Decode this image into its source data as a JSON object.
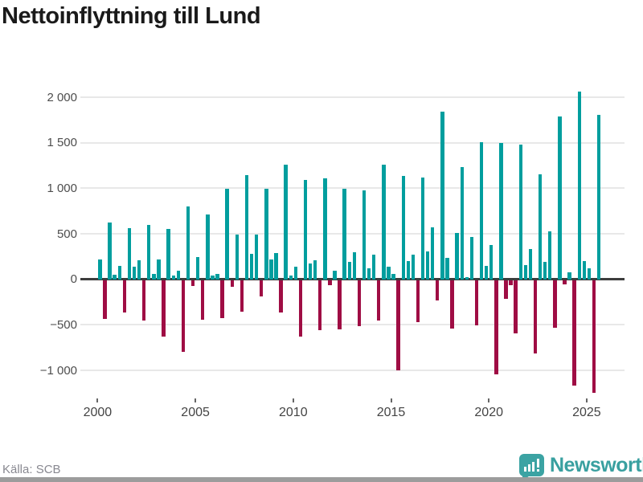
{
  "title": "Nettoinflyttning till Lund",
  "footer": {
    "source_label": "Källa: SCB"
  },
  "branding": {
    "wordmark": "Newsworthy",
    "logo_icon": "speech-bubble-bar-chart-icon",
    "color": "#3ba3a3"
  },
  "chart_data": {
    "type": "bar",
    "title": "Nettoinflyttning till Lund",
    "xlabel": "",
    "ylabel": "",
    "ylim": [
      -1350,
      2200
    ],
    "grid": "horizontal",
    "positive_color": "#009e9e",
    "negative_color": "#9f0d44",
    "yticks": [
      {
        "value": 2000,
        "label": "2 000"
      },
      {
        "value": 1500,
        "label": "1 500"
      },
      {
        "value": 1000,
        "label": "1 000"
      },
      {
        "value": 500,
        "label": "500"
      },
      {
        "value": 0,
        "label": "0"
      },
      {
        "value": -500,
        "label": "−500"
      },
      {
        "value": -1000,
        "label": "−1 000"
      }
    ],
    "xticks": [
      {
        "year": 2000,
        "label": "2000"
      },
      {
        "year": 2005,
        "label": "2005"
      },
      {
        "year": 2010,
        "label": "2010"
      },
      {
        "year": 2015,
        "label": "2015"
      },
      {
        "year": 2020,
        "label": "2020"
      },
      {
        "year": 2025,
        "label": "2025"
      }
    ],
    "quarterly_net_migration": [
      {
        "year": 2000,
        "values": [
          220,
          -420,
          620,
          50
        ]
      },
      {
        "year": 2001,
        "values": [
          150,
          -350,
          565,
          135
        ]
      },
      {
        "year": 2002,
        "values": [
          205,
          -440,
          600,
          55
        ]
      },
      {
        "year": 2003,
        "values": [
          220,
          -620,
          555,
          40
        ]
      },
      {
        "year": 2004,
        "values": [
          95,
          -780,
          800,
          -60
        ]
      },
      {
        "year": 2005,
        "values": [
          245,
          -430,
          710,
          40
        ]
      },
      {
        "year": 2006,
        "values": [
          55,
          -410,
          990,
          -65
        ]
      },
      {
        "year": 2007,
        "values": [
          495,
          -340,
          1140,
          280
        ]
      },
      {
        "year": 2008,
        "values": [
          495,
          -175,
          990,
          215
        ]
      },
      {
        "year": 2009,
        "values": [
          290,
          -350,
          1260,
          40
        ]
      },
      {
        "year": 2010,
        "values": [
          140,
          -620,
          1090,
          175
        ]
      },
      {
        "year": 2011,
        "values": [
          205,
          -545,
          1110,
          -50
        ]
      },
      {
        "year": 2012,
        "values": [
          90,
          -535,
          995,
          195
        ]
      },
      {
        "year": 2013,
        "values": [
          295,
          -500,
          980,
          125
        ]
      },
      {
        "year": 2014,
        "values": [
          270,
          -440,
          1260,
          135
        ]
      },
      {
        "year": 2015,
        "values": [
          60,
          -990,
          1135,
          200
        ]
      },
      {
        "year": 2016,
        "values": [
          275,
          -455,
          1115,
          305
        ]
      },
      {
        "year": 2017,
        "values": [
          570,
          -220,
          1840,
          235
        ]
      },
      {
        "year": 2018,
        "values": [
          -530,
          510,
          1235,
          25
        ]
      },
      {
        "year": 2019,
        "values": [
          465,
          -490,
          1510,
          145
        ]
      },
      {
        "year": 2020,
        "values": [
          380,
          -1030,
          1500,
          -200
        ]
      },
      {
        "year": 2021,
        "values": [
          -50,
          -580,
          1480,
          160
        ]
      },
      {
        "year": 2022,
        "values": [
          330,
          -800,
          1150,
          190
        ]
      },
      {
        "year": 2023,
        "values": [
          530,
          -520,
          1790,
          -40
        ]
      },
      {
        "year": 2024,
        "values": [
          80,
          -1150,
          2060,
          200
        ]
      },
      {
        "year": 2025,
        "values": [
          120,
          -1230,
          1810
        ]
      }
    ]
  }
}
